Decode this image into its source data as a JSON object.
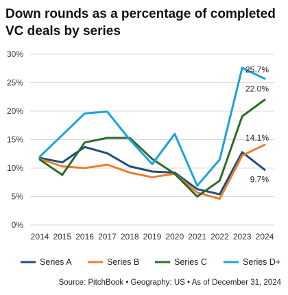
{
  "chart_data": {
    "type": "line",
    "title": "Down rounds as a percentage of completed VC deals by series",
    "x": [
      "2014",
      "2015",
      "2016",
      "2017",
      "2018",
      "2019",
      "2020",
      "2021",
      "2022",
      "2023",
      "2024"
    ],
    "ylim": [
      0,
      30
    ],
    "yticks": [
      "0%",
      "5%",
      "10%",
      "15%",
      "20%",
      "25%",
      "30%"
    ],
    "grid": "horizontal",
    "legend": "bottom",
    "series": [
      {
        "name": "Series A",
        "color": "#1f4e79",
        "values": [
          11.8,
          11.0,
          13.7,
          12.6,
          10.3,
          9.4,
          9.2,
          6.3,
          5.4,
          12.8,
          9.7
        ],
        "end_label": "9.7%"
      },
      {
        "name": "Series B",
        "color": "#ed7d31",
        "values": [
          11.6,
          10.3,
          10.0,
          10.6,
          9.2,
          8.4,
          9.0,
          5.7,
          4.6,
          12.2,
          14.1
        ],
        "end_label": "14.1%"
      },
      {
        "name": "Series C",
        "color": "#2d6a2d",
        "values": [
          11.5,
          8.8,
          14.5,
          15.3,
          15.3,
          11.6,
          9.0,
          5.0,
          7.8,
          19.1,
          22.0
        ],
        "end_label": "22.0%"
      },
      {
        "name": "Series D+",
        "color": "#1aa3d9",
        "values": [
          12.0,
          15.8,
          19.6,
          19.9,
          15.0,
          10.7,
          16.0,
          6.9,
          11.5,
          27.6,
          25.7
        ],
        "end_label": "25.7%"
      }
    ]
  },
  "source": "Source: PitchBook  •  Geography: US  •  As of December 31, 2024"
}
